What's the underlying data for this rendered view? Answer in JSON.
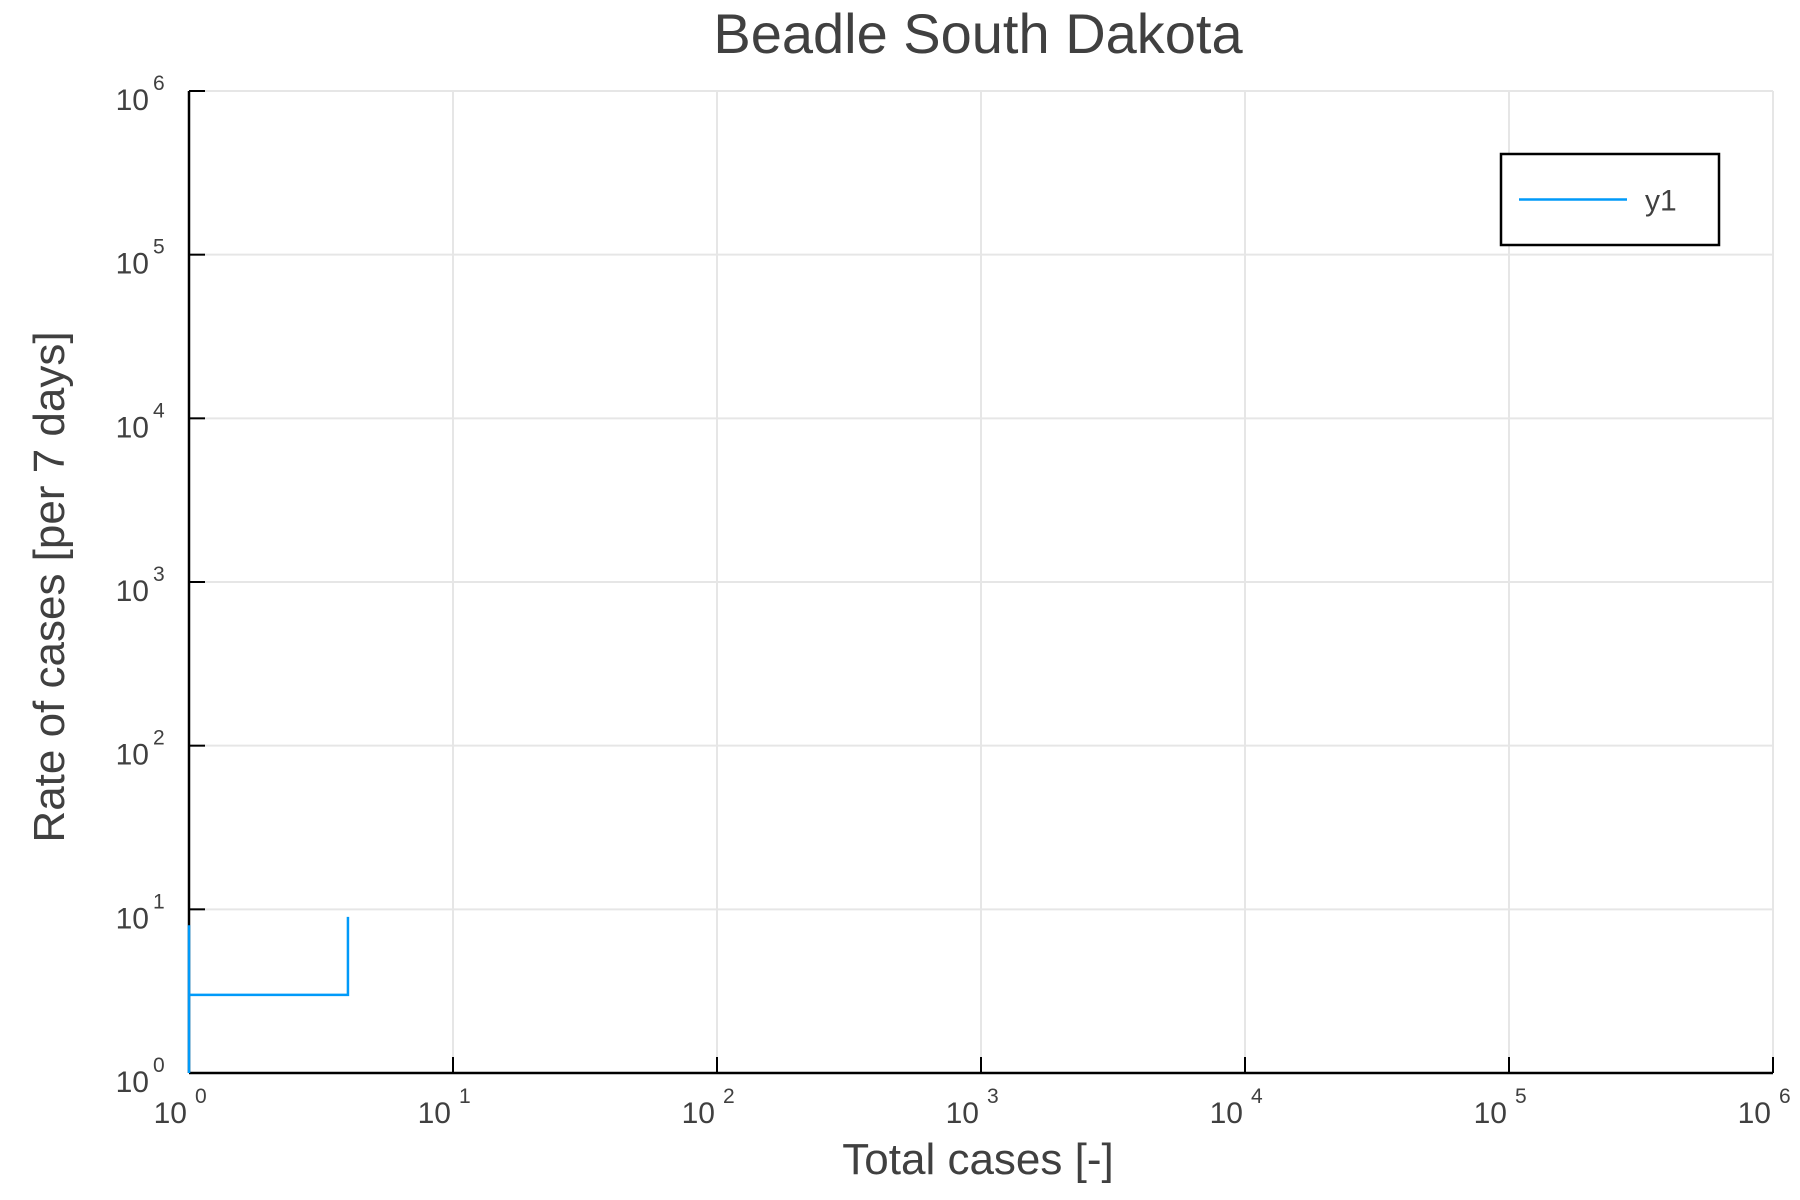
{
  "chart_data": {
    "type": "line",
    "title": "Beadle South Dakota",
    "xlabel": "Total cases [-]",
    "ylabel": "Rate of cases [per 7 days]",
    "xscale": "log",
    "yscale": "log",
    "xlim": [
      1,
      1000000
    ],
    "ylim": [
      1,
      1000000
    ],
    "grid": true,
    "legend_placement": "top-right",
    "tick_base": "10",
    "x_tick_exponents": [
      "0",
      "1",
      "2",
      "3",
      "4",
      "5",
      "6"
    ],
    "y_tick_exponents": [
      "0",
      "1",
      "2",
      "3",
      "4",
      "5",
      "6"
    ],
    "series": [
      {
        "name": "y1",
        "color": "#009af9",
        "x": [
          1,
          1,
          1,
          4,
          4
        ],
        "y": [
          1,
          8,
          3,
          3,
          9
        ]
      }
    ]
  }
}
